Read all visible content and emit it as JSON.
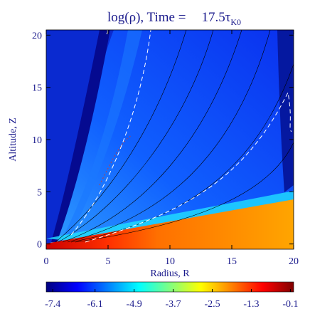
{
  "chart_data": {
    "type": "heatmap",
    "title": "log(ρ), Time =",
    "time": "17.5",
    "time_unit": "τ",
    "time_unit_sub": "K0",
    "x_label": "Radius, R",
    "y_label": "Altitude, Z",
    "xlim": [
      0,
      20
    ],
    "xticks": [
      0,
      5,
      10,
      15,
      20
    ],
    "ylim": [
      -0.5,
      20.5
    ],
    "yticks": [
      0,
      5,
      10,
      15,
      20
    ],
    "clim": [
      -7.6,
      0
    ],
    "cticks": [
      -7.4,
      -6.1,
      -4.9,
      -3.7,
      -2.5,
      -1.3,
      -0.1
    ],
    "colormap": [
      "#00007f",
      "#0000ff",
      "#0080ff",
      "#00ffff",
      "#80ff80",
      "#ffff00",
      "#ff8000",
      "#ff0000",
      "#7f0000"
    ]
  }
}
